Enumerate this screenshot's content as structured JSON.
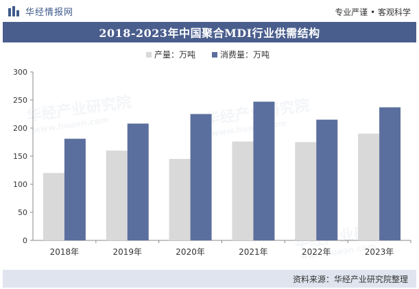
{
  "header": {
    "brand_name": "华经情报网",
    "tagline": "专业严谨 • 客观科学",
    "brand_icon": "bar-logo-icon"
  },
  "chart_data": {
    "type": "bar",
    "title": "2018-2023年中国聚合MDI行业供需结构",
    "categories": [
      "2018年",
      "2019年",
      "2020年",
      "2021年",
      "2022年",
      "2023年"
    ],
    "series": [
      {
        "name": "产量：万吨",
        "color": "#d9d9d9",
        "values": [
          120,
          160,
          145,
          176,
          175,
          190
        ]
      },
      {
        "name": "消费量：万吨",
        "color": "#5b6f9e",
        "values": [
          181,
          208,
          225,
          247,
          215,
          237
        ]
      }
    ],
    "ylim": [
      0,
      300
    ],
    "yticks": [
      0,
      50,
      100,
      150,
      200,
      250,
      300
    ],
    "grid": false,
    "legend": "top-center",
    "xlabel": "",
    "ylabel": ""
  },
  "footer": {
    "source": "资料来源：华经产业研究院整理"
  },
  "watermark": {
    "text": "华经产业研究院",
    "url": "www.huaon.com"
  }
}
